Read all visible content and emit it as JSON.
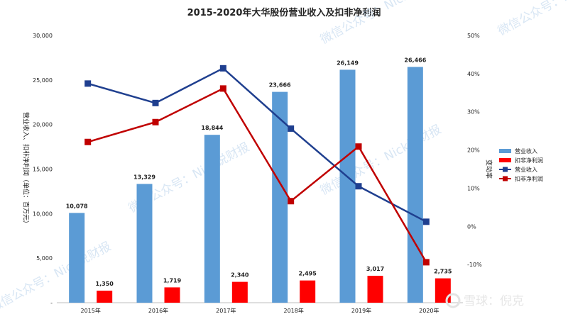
{
  "chart_data": {
    "type": "bar+line",
    "title": "2015-2020年大华股份营业收入及扣非净利润",
    "categories": [
      "2015年",
      "2016年",
      "2017年",
      "2018年",
      "2019年",
      "2020年"
    ],
    "y_left": {
      "label": "营业收入、扣非净利润（单位：百万元）",
      "ylim": [
        0,
        30000
      ],
      "ticks": [
        "-",
        "5,000",
        "10,000",
        "15,000",
        "20,000",
        "25,000",
        "30,000"
      ]
    },
    "y_right": {
      "label": "变动率",
      "ylim": [
        -0.2,
        0.5
      ],
      "ticks": [
        "",
        "-10%",
        "0%",
        "10%",
        "20%",
        "30%",
        "40%",
        "50%"
      ]
    },
    "bar_series": [
      {
        "name": "营业收入",
        "color": "#5b9bd5",
        "values": [
          10078,
          13329,
          18844,
          23666,
          26149,
          26466
        ],
        "labels": [
          "10,078",
          "13,329",
          "18,844",
          "23,666",
          "26,149",
          "26,466"
        ]
      },
      {
        "name": "扣非净利润",
        "color": "#ff0000",
        "values": [
          1350,
          1719,
          2340,
          2495,
          3017,
          2735
        ],
        "labels": [
          "1,350",
          "1,719",
          "2,340",
          "2,495",
          "3,017",
          "2,735"
        ]
      }
    ],
    "line_series": [
      {
        "name": "营业收入",
        "color": "#1f3f8f",
        "values": [
          0.374,
          0.323,
          0.414,
          0.256,
          0.105,
          0.012
        ]
      },
      {
        "name": "扣非净利润",
        "color": "#c00000",
        "values": [
          0.221,
          0.273,
          0.361,
          0.066,
          0.209,
          -0.094
        ]
      }
    ],
    "legend": {
      "position": "right"
    },
    "grid": false
  },
  "watermarks": [
    "微信公众号：Nick说财报",
    "微信公众号：Nick说财报",
    "微信公众号：Nick说财报",
    "微信公众号：Nick说财报",
    "微信公众号：Nick说财报"
  ],
  "logo_text": "雪球：倪克"
}
